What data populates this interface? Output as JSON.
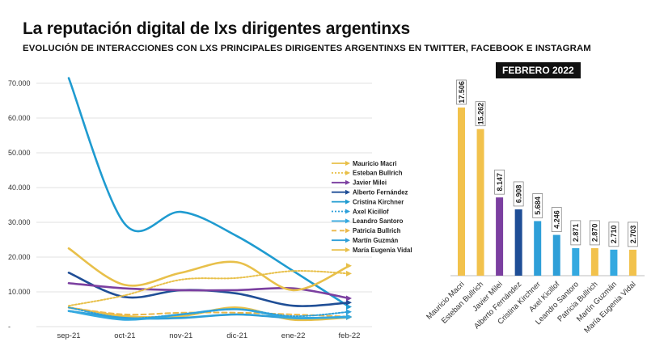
{
  "title": "La reputación digital de lxs dirigentes argentinxs",
  "subtitle": "EVOLUCIÓN DE INTERACCIONES CON LXS PRINCIPALES DIRIGENTES ARGENTINXS EN TWITTER, FACEBOOK E INSTAGRAM",
  "chart_data": [
    {
      "type": "line",
      "x": [
        "sep-21",
        "oct-21",
        "nov-21",
        "dic-21",
        "ene-22",
        "feb-22"
      ],
      "yticks": [
        "-",
        "10.000",
        "20.000",
        "30.000",
        "40.000",
        "50.000",
        "60.000",
        "70.000"
      ],
      "ylim": [
        0,
        70000
      ],
      "grid": true,
      "legend_position": "right",
      "series": [
        {
          "name": "Mauricio Macri",
          "color": "#E8C04A",
          "dash": "solid",
          "values": [
            22500,
            12000,
            15500,
            18500,
            10500,
            17500
          ]
        },
        {
          "name": "Esteban Bullrich",
          "color": "#E8C04A",
          "dash": "dotted",
          "values": [
            6000,
            9000,
            13500,
            14000,
            16000,
            15262
          ]
        },
        {
          "name": "Javier Milei",
          "color": "#7B3FA0",
          "dash": "solid",
          "values": [
            12500,
            11000,
            10500,
            10500,
            11000,
            8147
          ]
        },
        {
          "name": "Alberto Fernández",
          "color": "#1F4E96",
          "dash": "solid",
          "values": [
            15500,
            8500,
            10500,
            9500,
            6000,
            6908
          ]
        },
        {
          "name": "Cristina Kirchner",
          "color": "#1F9BD0",
          "dash": "solid",
          "values": [
            71500,
            29500,
            33000,
            26000,
            16000,
            5684
          ]
        },
        {
          "name": "Axel Kicillof",
          "color": "#2EA0DA",
          "dash": "dotted",
          "values": [
            5500,
            2500,
            3500,
            5000,
            3000,
            4246
          ]
        },
        {
          "name": "Leandro Santoro",
          "color": "#34A9E0",
          "dash": "solid",
          "values": [
            4500,
            2000,
            3500,
            5000,
            2500,
            2871
          ]
        },
        {
          "name": "Patricia Bullrich",
          "color": "#EBB84A",
          "dash": "dashed",
          "values": [
            5500,
            3500,
            4000,
            4000,
            3500,
            2870
          ]
        },
        {
          "name": "Martín Guzmán",
          "color": "#2E9FD8",
          "dash": "solid",
          "values": [
            4500,
            2500,
            2500,
            3500,
            2500,
            2710
          ]
        },
        {
          "name": "María Eugenia Vidal",
          "color": "#E8C04A",
          "dash": "solid",
          "values": [
            5500,
            3000,
            3000,
            5500,
            2000,
            2703
          ]
        }
      ]
    },
    {
      "type": "bar",
      "title": "FEBRERO 2022",
      "categories": [
        "Mauricio Macri",
        "Esteban Bullrich",
        "Javier Milei",
        "Alberto Fernández",
        "Cristina Kirchner",
        "Axel Kicillof",
        "Leandro Santoro",
        "Patricia Bullrich",
        "Martín Guzmán",
        "María Eugenia Vidal"
      ],
      "values": [
        17506,
        15262,
        8147,
        6908,
        5684,
        4246,
        2871,
        2870,
        2710,
        2703
      ],
      "labels": [
        "17.506",
        "15.262",
        "8.147",
        "6.908",
        "5.684",
        "4.246",
        "2.871",
        "2.870",
        "2.710",
        "2.703"
      ],
      "colors": [
        "#F2C24C",
        "#F2C24C",
        "#7B3FA0",
        "#1F4E96",
        "#2E9FD8",
        "#2E9FD8",
        "#34A9E0",
        "#F2C24C",
        "#34A9E0",
        "#F2C24C"
      ],
      "ylim": [
        0,
        17506
      ]
    }
  ]
}
